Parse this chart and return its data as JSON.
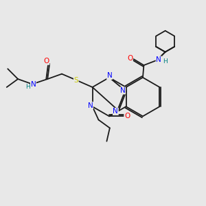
{
  "bg_color": "#e8e8e8",
  "atom_colors": {
    "N": "#0000ff",
    "O": "#ff0000",
    "S": "#cccc00",
    "H": "#008080",
    "C": "#1a1a1a"
  }
}
